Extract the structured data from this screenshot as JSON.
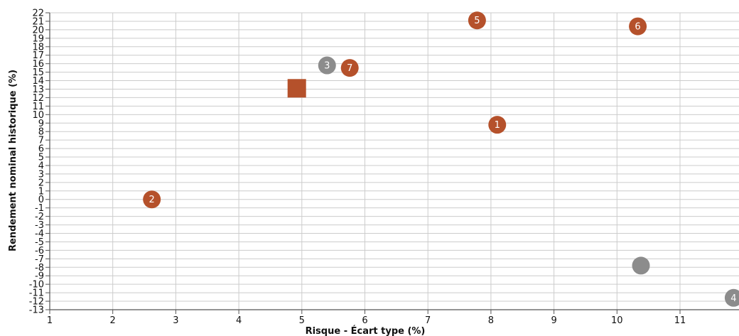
{
  "chart_data": {
    "type": "scatter",
    "xlabel": "Risque - Écart type (%)",
    "ylabel": "Rendement nominal historique (%)",
    "xlim": [
      1,
      12
    ],
    "ylim": [
      -13,
      22
    ],
    "x_ticks": [
      1,
      2,
      3,
      4,
      5,
      6,
      7,
      8,
      9,
      10,
      11
    ],
    "y_ticks": [
      -13,
      -12,
      -11,
      -10,
      -9,
      -8,
      -7,
      -6,
      -5,
      -4,
      -3,
      -2,
      -1,
      0,
      1,
      2,
      3,
      4,
      5,
      6,
      7,
      8,
      9,
      10,
      11,
      12,
      13,
      14,
      15,
      16,
      17,
      18,
      19,
      20,
      21,
      22
    ],
    "grid": true,
    "colors": {
      "rust": "#b5512b",
      "gray": "#8c8c8c",
      "grid": "#cccccc",
      "axis": "#555555"
    },
    "points": [
      {
        "label": "1",
        "x": 8.1,
        "y": 8.8,
        "color": "#b5512b",
        "shape": "circle"
      },
      {
        "label": "2",
        "x": 2.62,
        "y": 0.0,
        "color": "#b5512b",
        "shape": "circle"
      },
      {
        "label": "3",
        "x": 5.4,
        "y": 15.8,
        "color": "#8c8c8c",
        "shape": "circle"
      },
      {
        "label": "4",
        "x": 11.85,
        "y": -11.6,
        "color": "#8c8c8c",
        "shape": "circle"
      },
      {
        "label": "5",
        "x": 7.78,
        "y": 21.1,
        "color": "#b5512b",
        "shape": "circle"
      },
      {
        "label": "6",
        "x": 10.33,
        "y": 20.4,
        "color": "#b5512b",
        "shape": "circle"
      },
      {
        "label": "7",
        "x": 5.76,
        "y": 15.5,
        "color": "#b5512b",
        "shape": "circle"
      },
      {
        "label": "",
        "x": 10.38,
        "y": -7.8,
        "color": "#8c8c8c",
        "shape": "circle"
      },
      {
        "label": "",
        "x": 4.92,
        "y": 13.1,
        "color": "#b5512b",
        "shape": "square"
      }
    ]
  }
}
